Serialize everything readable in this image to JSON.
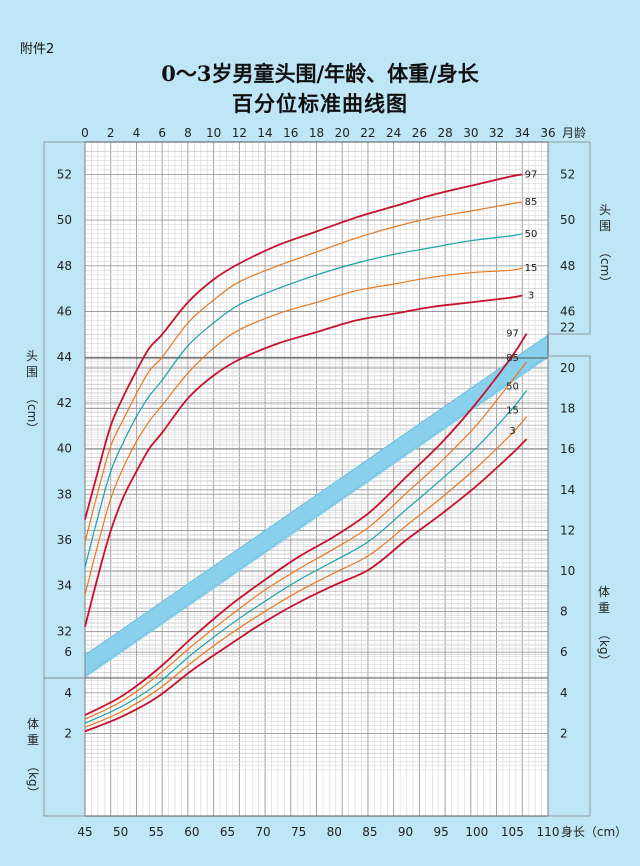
{
  "header": {
    "attachment": "附件2",
    "title_line1": "0～3岁男童头围/年龄、体重/身长",
    "title_line2": "百分位标准曲线图"
  },
  "chart_data": [
    {
      "id": "head-circumference-for-age",
      "type": "line",
      "x_label": "月龄",
      "x_ticks": [
        0,
        2,
        4,
        6,
        8,
        10,
        12,
        14,
        16,
        18,
        20,
        22,
        24,
        26,
        28,
        30,
        32,
        34,
        36
      ],
      "xlim": [
        0,
        36
      ],
      "y_label_left": "头围（cm）",
      "y_label_right": "头围（cm）",
      "y_ticks_left": [
        32,
        34,
        36,
        38,
        40,
        42,
        44,
        46,
        48,
        50,
        52
      ],
      "y_ticks_right": [
        46,
        48,
        50,
        52
      ],
      "ylim": [
        30.5,
        53.2
      ],
      "grid": true,
      "x": [
        0,
        1,
        2,
        3,
        4,
        5,
        6,
        8,
        10,
        12,
        15,
        18,
        21,
        24,
        27,
        30,
        33,
        34
      ],
      "series": [
        {
          "name": "97",
          "color": "#c8102e",
          "values": [
            36.9,
            39.0,
            41.0,
            42.3,
            43.4,
            44.4,
            45.0,
            46.4,
            47.4,
            48.1,
            48.9,
            49.5,
            50.1,
            50.6,
            51.1,
            51.5,
            51.9,
            52.0
          ]
        },
        {
          "name": "85",
          "color": "#e8781e",
          "values": [
            35.9,
            38.1,
            40.1,
            41.3,
            42.4,
            43.4,
            44.0,
            45.5,
            46.5,
            47.3,
            48.0,
            48.6,
            49.2,
            49.7,
            50.1,
            50.4,
            50.7,
            50.8
          ]
        },
        {
          "name": "50",
          "color": "#17a2a8",
          "values": [
            34.8,
            37.0,
            39.0,
            40.3,
            41.4,
            42.3,
            43.0,
            44.5,
            45.5,
            46.3,
            47.0,
            47.6,
            48.1,
            48.5,
            48.8,
            49.1,
            49.3,
            49.4
          ]
        },
        {
          "name": "15",
          "color": "#e8781e",
          "values": [
            33.6,
            35.8,
            37.8,
            39.2,
            40.3,
            41.2,
            41.9,
            43.3,
            44.4,
            45.2,
            45.9,
            46.4,
            46.9,
            47.2,
            47.5,
            47.7,
            47.8,
            47.9
          ]
        },
        {
          "name": "3",
          "color": "#c8102e",
          "values": [
            32.2,
            34.4,
            36.4,
            37.9,
            39.0,
            40.0,
            40.7,
            42.2,
            43.2,
            43.9,
            44.6,
            45.1,
            45.6,
            45.9,
            46.2,
            46.4,
            46.6,
            46.7
          ]
        }
      ]
    },
    {
      "id": "weight-for-length",
      "type": "line",
      "x_label": "身长（cm）",
      "x_ticks": [
        45,
        50,
        55,
        60,
        65,
        70,
        75,
        80,
        85,
        90,
        95,
        100,
        105,
        "110"
      ],
      "xlim": [
        45,
        110
      ],
      "y_label_left": "体重（kg）",
      "y_label_right": "体重（kg）",
      "y_ticks_left": [
        2,
        4,
        6
      ],
      "y_ticks_right": [
        2,
        4,
        6,
        8,
        10,
        12,
        14,
        16,
        18,
        20,
        22
      ],
      "ylim": [
        0,
        23.5
      ],
      "grid": true,
      "x": [
        45,
        50,
        55,
        60,
        65,
        70,
        75,
        80,
        85,
        90,
        95,
        100,
        105,
        107
      ],
      "series": [
        {
          "name": "97",
          "color": "#c8102e",
          "values": [
            2.9,
            3.8,
            5.1,
            6.7,
            8.2,
            9.5,
            10.7,
            11.7,
            12.9,
            14.6,
            16.3,
            18.3,
            20.6,
            21.7
          ]
        },
        {
          "name": "85",
          "color": "#e8781e",
          "values": [
            2.7,
            3.55,
            4.8,
            6.3,
            7.7,
            9.0,
            10.1,
            11.1,
            12.2,
            13.8,
            15.4,
            17.2,
            19.4,
            20.3
          ]
        },
        {
          "name": "50",
          "color": "#17a2a8",
          "values": [
            2.5,
            3.3,
            4.4,
            5.9,
            7.25,
            8.45,
            9.55,
            10.5,
            11.5,
            13.0,
            14.5,
            16.1,
            18.0,
            18.9
          ]
        },
        {
          "name": "15",
          "color": "#e8781e",
          "values": [
            2.3,
            3.05,
            4.1,
            5.5,
            6.8,
            7.95,
            9.0,
            9.9,
            10.8,
            12.2,
            13.6,
            15.1,
            16.8,
            17.6
          ]
        },
        {
          "name": "3",
          "color": "#c8102e",
          "values": [
            2.1,
            2.8,
            3.75,
            5.1,
            6.3,
            7.45,
            8.45,
            9.3,
            10.1,
            11.5,
            12.8,
            14.2,
            15.8,
            16.5
          ]
        }
      ]
    }
  ],
  "colors": {
    "background": "#bfe6f6",
    "plot_background": "#ffffff",
    "band": "#88d0ec",
    "grid_major": "#9a9a9a",
    "grid_minor": "#cfcfcf"
  }
}
